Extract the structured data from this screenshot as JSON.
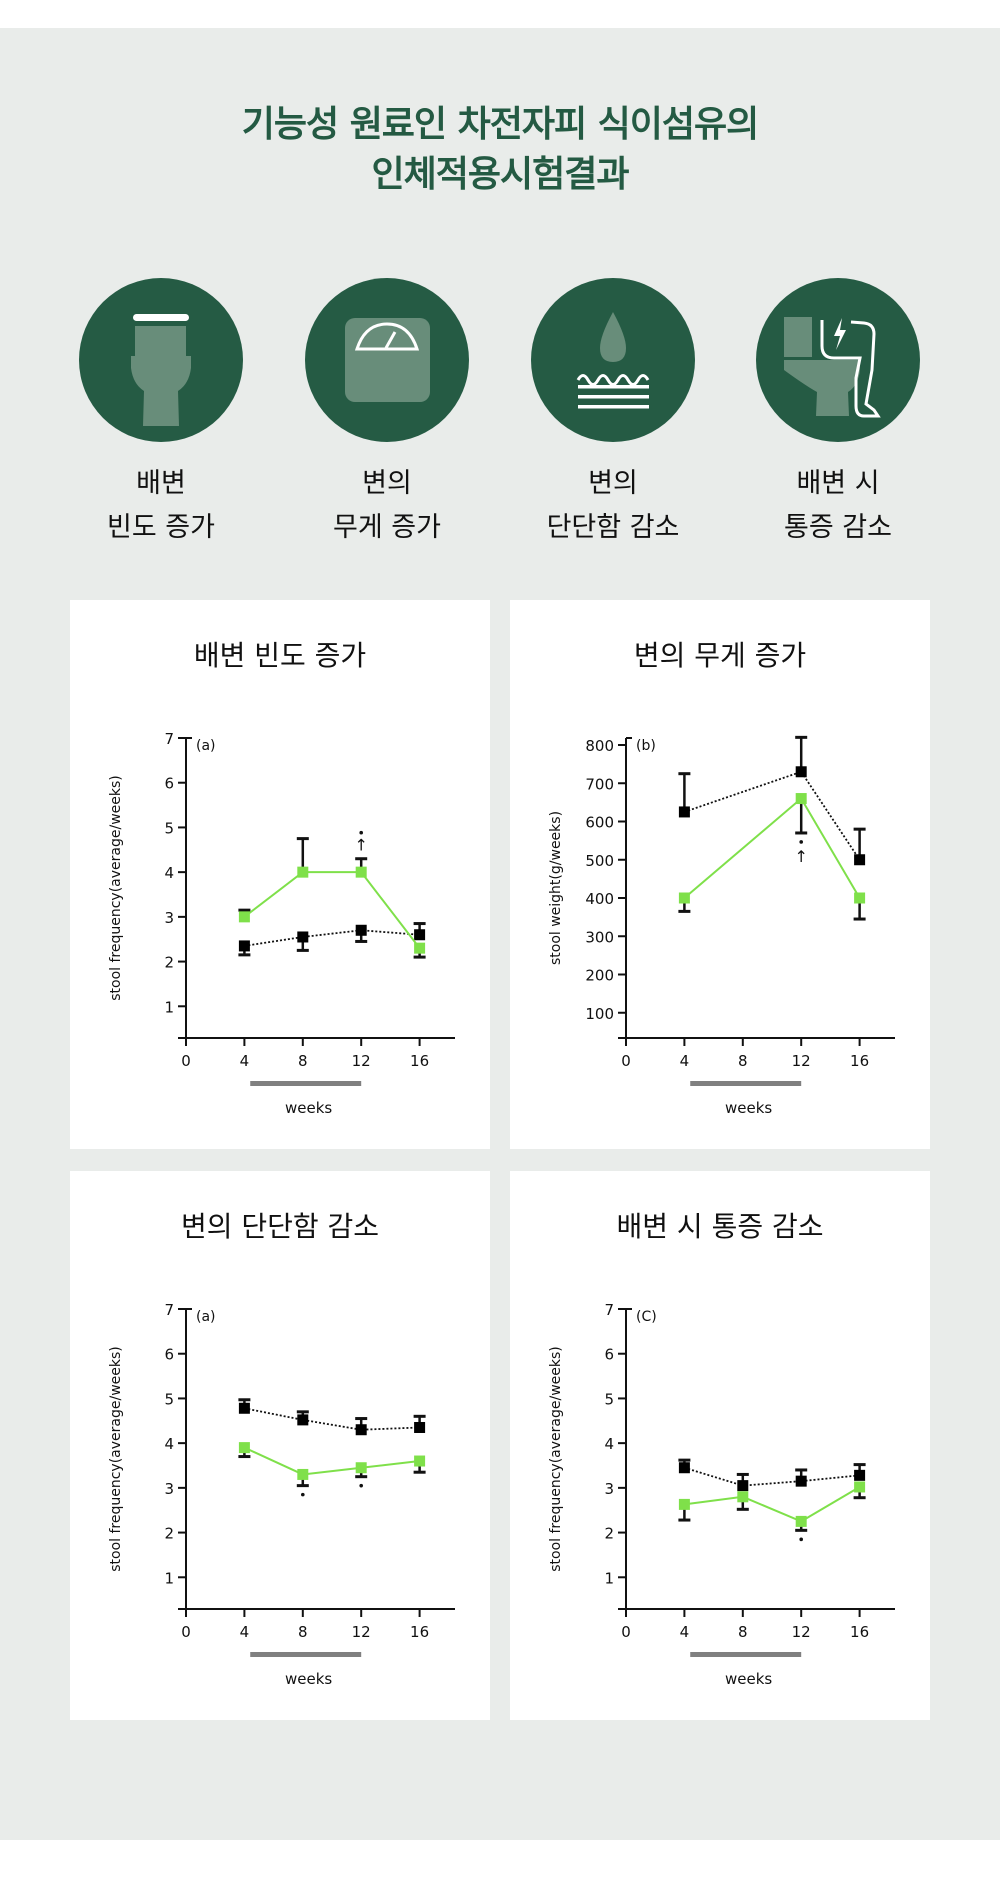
{
  "title": [
    "기능성 원료인 차전자피 식이섬유의",
    "인체적용시험결과"
  ],
  "colors": {
    "brand": "#255b44",
    "icon_fill": "#688d7a",
    "green_series": "#7fe04a",
    "black_series": "#000000",
    "bar": "#808080",
    "background": "#e9ecea"
  },
  "features": [
    {
      "icon": "toilet-icon",
      "label": [
        "배변",
        "빈도 증가"
      ]
    },
    {
      "icon": "scale-icon",
      "label": [
        "변의",
        "무게 증가"
      ]
    },
    {
      "icon": "water-drop-icon",
      "label": [
        "변의",
        "단단함 감소"
      ]
    },
    {
      "icon": "toilet-pain-icon",
      "label": [
        "배변 시",
        "통증 감소"
      ]
    }
  ],
  "chart_data": [
    {
      "type": "line",
      "title": "배변 빈도 증가",
      "panel": "(a)",
      "xlabel": "weeks",
      "ylabel": "stool frequency(average/weeks)",
      "xticks": [
        0,
        4,
        8,
        12,
        16
      ],
      "yticks": [
        1,
        2,
        3,
        4,
        5,
        6,
        7
      ],
      "xlim": [
        0,
        18
      ],
      "ylim": [
        0,
        7
      ],
      "series": [
        {
          "style": "dotted-black",
          "x": [
            4,
            8,
            12,
            16
          ],
          "y": [
            2.35,
            2.55,
            2.7,
            2.6
          ],
          "err": [
            [
              2.15,
              null
            ],
            [
              2.25,
              null
            ],
            [
              2.45,
              null
            ],
            [
              null,
              2.85
            ]
          ]
        },
        {
          "style": "solid-green",
          "x": [
            4,
            8,
            12,
            16
          ],
          "y": [
            3.0,
            4.0,
            4.0,
            2.3
          ],
          "err": [
            [
              null,
              3.15
            ],
            [
              null,
              4.75
            ],
            [
              null,
              4.3
            ],
            [
              2.1,
              null
            ]
          ],
          "significant": [
            12
          ],
          "marker": "↑"
        }
      ]
    },
    {
      "type": "line",
      "title": "변의 무게 증가",
      "panel": "(b)",
      "xlabel": "weeks",
      "ylabel": "stool weight(g/weeks)",
      "xticks": [
        0,
        4,
        8,
        12,
        16
      ],
      "yticks": [
        100,
        200,
        300,
        400,
        500,
        600,
        700,
        800
      ],
      "xlim": [
        0,
        18
      ],
      "ylim": [
        0,
        800
      ],
      "series": [
        {
          "style": "dotted-black",
          "x": [
            4,
            12,
            16
          ],
          "y": [
            625,
            730,
            500
          ],
          "err": [
            [
              null,
              725
            ],
            [
              null,
              820
            ],
            [
              null,
              580
            ]
          ]
        },
        {
          "style": "solid-green",
          "x": [
            4,
            12,
            16
          ],
          "y": [
            400,
            660,
            400
          ],
          "err": [
            [
              365,
              null
            ],
            [
              570,
              null
            ],
            [
              345,
              null
            ]
          ],
          "significant": [
            12
          ],
          "marker": "↑"
        }
      ]
    },
    {
      "type": "line",
      "title": "변의 단단함 감소",
      "panel": "(a)",
      "xlabel": "weeks",
      "ylabel": "stool frequency(average/weeks)",
      "xticks": [
        0,
        4,
        8,
        12,
        16
      ],
      "yticks": [
        1,
        2,
        3,
        4,
        5,
        6,
        7
      ],
      "xlim": [
        0,
        18
      ],
      "ylim": [
        0,
        7
      ],
      "series": [
        {
          "style": "dotted-black",
          "x": [
            4,
            8,
            12,
            16
          ],
          "y": [
            4.78,
            4.52,
            4.3,
            4.35
          ],
          "err": [
            [
              null,
              4.97
            ],
            [
              null,
              4.7
            ],
            [
              null,
              4.55
            ],
            [
              null,
              4.6
            ]
          ]
        },
        {
          "style": "solid-green",
          "x": [
            4,
            8,
            12,
            16
          ],
          "y": [
            3.9,
            3.3,
            3.45,
            3.6
          ],
          "err": [
            [
              3.7,
              null
            ],
            [
              3.05,
              null
            ],
            [
              3.25,
              null
            ],
            [
              3.35,
              null
            ]
          ],
          "significant": [
            8,
            12
          ],
          "marker": ""
        }
      ]
    },
    {
      "type": "line",
      "title": "배변 시 통증 감소",
      "panel": "(C)",
      "xlabel": "weeks",
      "ylabel": "stool frequency(average/weeks)",
      "xticks": [
        0,
        4,
        8,
        12,
        16
      ],
      "yticks": [
        1,
        2,
        3,
        4,
        5,
        6,
        7
      ],
      "xlim": [
        0,
        18
      ],
      "ylim": [
        0,
        7
      ],
      "series": [
        {
          "style": "dotted-black",
          "x": [
            4,
            8,
            12,
            16
          ],
          "y": [
            3.45,
            3.05,
            3.15,
            3.28
          ],
          "err": [
            [
              null,
              3.62
            ],
            [
              null,
              3.3
            ],
            [
              null,
              3.4
            ],
            [
              null,
              3.52
            ]
          ]
        },
        {
          "style": "solid-green",
          "x": [
            4,
            8,
            12,
            16
          ],
          "y": [
            2.63,
            2.8,
            2.25,
            3.02
          ],
          "err": [
            [
              2.28,
              null
            ],
            [
              2.52,
              null
            ],
            [
              2.05,
              null
            ],
            [
              2.78,
              null
            ]
          ],
          "significant": [
            12
          ],
          "marker": ""
        }
      ]
    }
  ],
  "intervention_period_weeks": [
    4,
    12
  ]
}
